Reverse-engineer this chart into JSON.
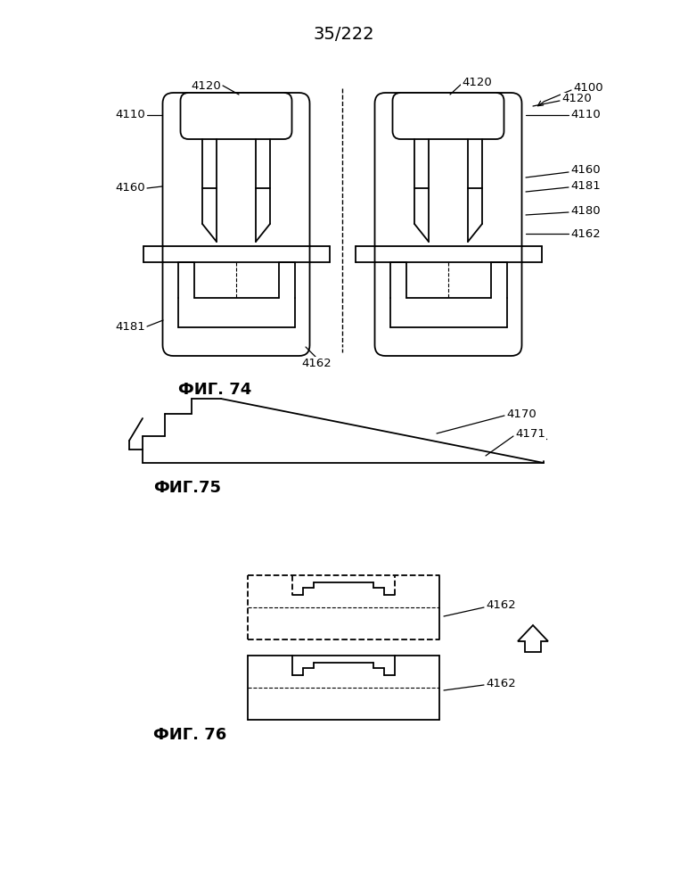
{
  "page_label": "35/222",
  "fig74_label": "ФИГ. 74",
  "fig75_label": "ФИГ.75",
  "fig76_label": "ФИГ. 76",
  "line_color": "#000000",
  "line_width": 1.3,
  "bg_color": "#ffffff",
  "font_size_label": 9.5,
  "font_size_fig": 13
}
